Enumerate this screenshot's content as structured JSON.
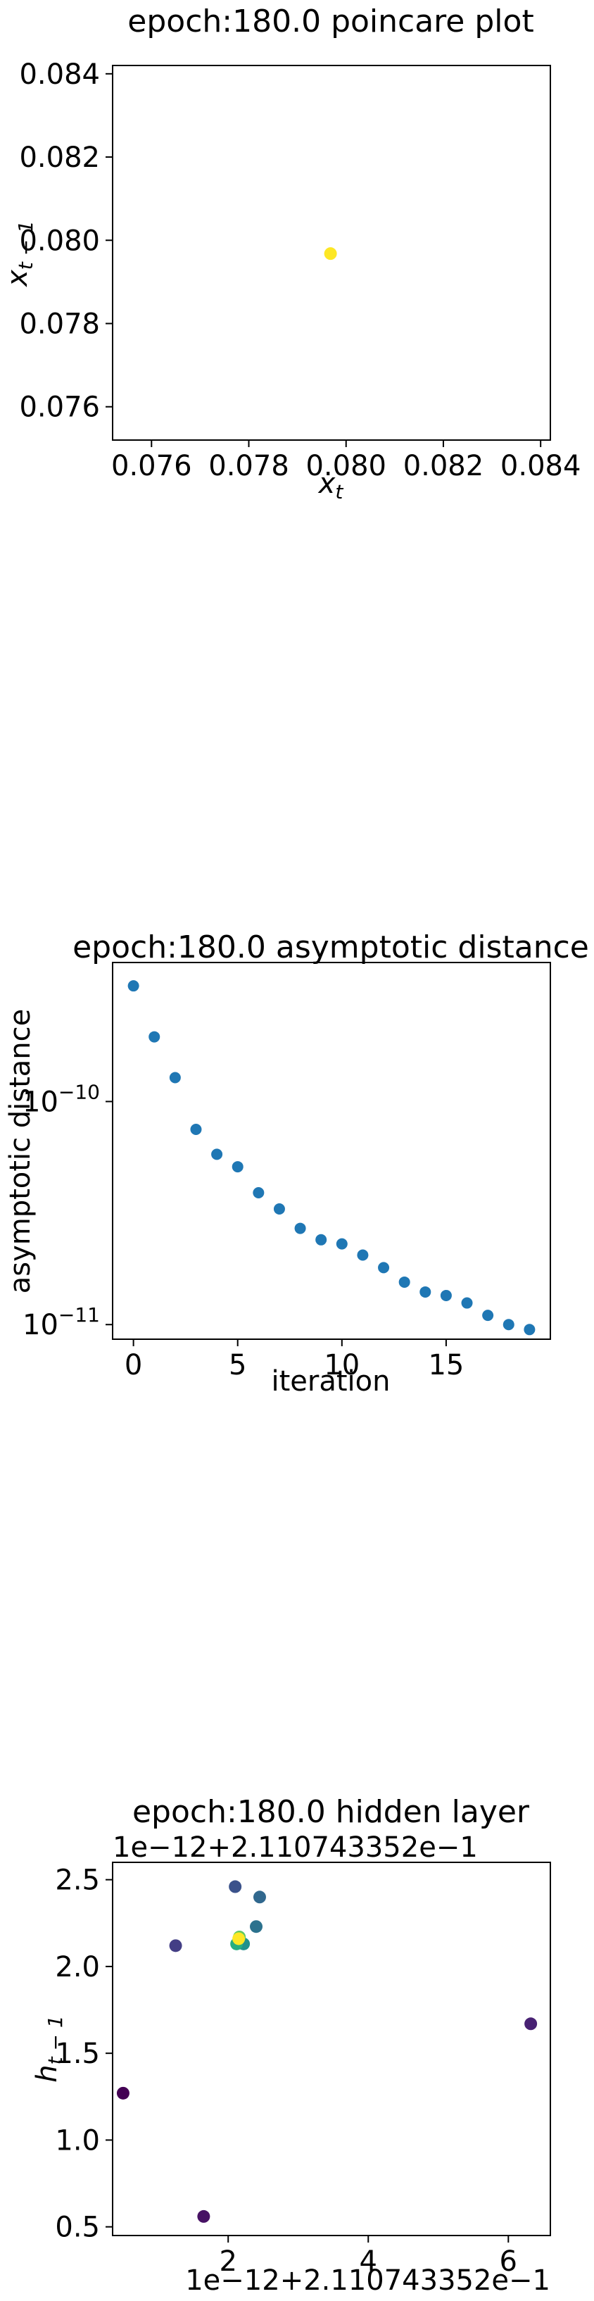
{
  "chart_data": [
    {
      "type": "scatter",
      "title": "epoch:180.0 poincare plot",
      "xlabel_base": "x",
      "xlabel_sub": "t",
      "ylabel_base": "x",
      "ylabel_sub": "t − 1",
      "xlim": [
        0.0752,
        0.0842
      ],
      "ylim": [
        0.0752,
        0.0842
      ],
      "xticks": [
        0.076,
        0.078,
        0.08,
        0.082,
        0.084
      ],
      "xtick_labels": [
        "0.076",
        "0.078",
        "0.080",
        "0.082",
        "0.084"
      ],
      "yticks": [
        0.076,
        0.078,
        0.08,
        0.082,
        0.084
      ],
      "ytick_labels": [
        "0.076",
        "0.078",
        "0.080",
        "0.082",
        "0.084"
      ],
      "points": [
        {
          "x": 0.07968,
          "y": 0.07968,
          "color": "#fde725"
        }
      ]
    },
    {
      "type": "scatter",
      "title": "epoch:180.0 asymptotic distance",
      "xlabel": "iteration",
      "ylabel": "asymptotic distance",
      "yscale": "log",
      "xlim": [
        -1,
        20
      ],
      "ylim": [
        8.6e-12,
        4.2e-10
      ],
      "xticks": [
        0,
        5,
        10,
        15
      ],
      "xtick_labels": [
        "0",
        "5",
        "10",
        "15"
      ],
      "yticks": [
        1e-10,
        1e-11
      ],
      "ytick_labels": [
        {
          "base": "10",
          "exp": "−10"
        },
        {
          "base": "10",
          "exp": "−11"
        }
      ],
      "color": "#1f77b4",
      "x": [
        0,
        1,
        2,
        3,
        4,
        5,
        6,
        7,
        8,
        9,
        10,
        11,
        12,
        13,
        14,
        15,
        16,
        17,
        18,
        19
      ],
      "y": [
        3.3e-10,
        1.95e-10,
        1.28e-10,
        7.5e-11,
        5.8e-11,
        5.1e-11,
        3.9e-11,
        3.3e-11,
        2.7e-11,
        2.4e-11,
        2.3e-11,
        2.05e-11,
        1.8e-11,
        1.55e-11,
        1.4e-11,
        1.35e-11,
        1.25e-11,
        1.1e-11,
        1e-11,
        9.5e-12
      ]
    },
    {
      "type": "scatter",
      "title": "epoch:180.0 hidden layer",
      "ylabel_base": "h",
      "ylabel_sub": "t − 1",
      "x_offset_text": "1e−12+2.110743352e−1",
      "y_offset_text": "1e−12+2.110743352e−1",
      "xlim": [
        0.35,
        6.6
      ],
      "ylim": [
        0.45,
        2.6
      ],
      "xticks": [
        2,
        4,
        6
      ],
      "xtick_labels": [
        "2",
        "4",
        "6"
      ],
      "yticks": [
        0.5,
        1.0,
        1.5,
        2.0,
        2.5
      ],
      "ytick_labels": [
        "0.5",
        "1.0",
        "1.5",
        "2.0",
        "2.5"
      ],
      "points": [
        {
          "x": 0.5,
          "y": 1.27,
          "color": "#440154"
        },
        {
          "x": 1.65,
          "y": 0.56,
          "color": "#471164"
        },
        {
          "x": 6.32,
          "y": 1.67,
          "color": "#482173"
        },
        {
          "x": 1.25,
          "y": 2.12,
          "color": "#433e85"
        },
        {
          "x": 2.1,
          "y": 2.46,
          "color": "#3b528b"
        },
        {
          "x": 2.45,
          "y": 2.4,
          "color": "#31688e"
        },
        {
          "x": 2.4,
          "y": 2.23,
          "color": "#2c728e"
        },
        {
          "x": 2.22,
          "y": 2.13,
          "color": "#21918c"
        },
        {
          "x": 2.12,
          "y": 2.13,
          "color": "#28ae80"
        },
        {
          "x": 2.16,
          "y": 2.17,
          "color": "#5ec962"
        },
        {
          "x": 2.15,
          "y": 2.16,
          "color": "#fde725"
        }
      ]
    }
  ]
}
